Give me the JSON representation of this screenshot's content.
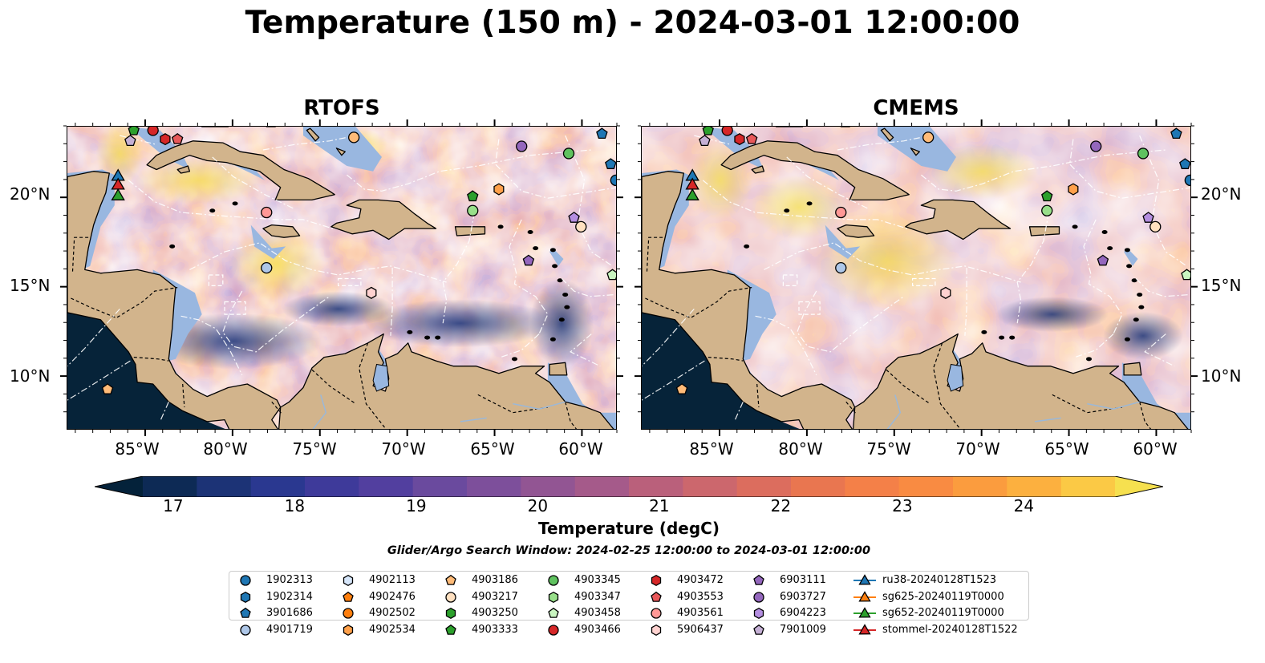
{
  "title": "Temperature (150 m) - 2024-03-01 12:00:00",
  "panels": [
    {
      "title": "RTOFS",
      "variant": "rtofs"
    },
    {
      "title": "CMEMS",
      "variant": "cmems"
    }
  ],
  "lat_labels": [
    "20°N",
    "15°N",
    "10°N"
  ],
  "lon_labels": [
    "85°W",
    "80°W",
    "75°W",
    "70°W",
    "65°W",
    "60°W"
  ],
  "colorbar": {
    "label": "Temperature (degC)",
    "ticks": [
      "17",
      "18",
      "19",
      "20",
      "21",
      "22",
      "23",
      "24"
    ],
    "min": 16.75,
    "max": 24.75,
    "extend": "both",
    "colors": [
      "#04223a",
      "#0d2a55",
      "#1c3376",
      "#2a3890",
      "#3e3a9a",
      "#523f9f",
      "#6a4a9e",
      "#7d4f9b",
      "#925593",
      "#a55a8a",
      "#ba607b",
      "#cc676d",
      "#dc6d5e",
      "#e97650",
      "#f48048",
      "#f98b42",
      "#fb9c3e",
      "#fcb03f",
      "#fbc945",
      "#f6e04f"
    ]
  },
  "search_window": "Glider/Argo Search Window: 2024-02-25 12:00:00 to 2024-03-01 12:00:00",
  "map": {
    "land_color": "#d2b48c",
    "shallow_color": "#99b7e0",
    "deep_color": "#062339",
    "lon_range": [
      -89.5,
      -58
    ],
    "lat_range": [
      7,
      24
    ]
  },
  "legend": [
    {
      "label": "1902313",
      "marker": "circle",
      "color": "#1f77b4"
    },
    {
      "label": "1902314",
      "marker": "hexagon",
      "color": "#1f77b4"
    },
    {
      "label": "3901686",
      "marker": "pentagon",
      "color": "#1f77b4"
    },
    {
      "label": "4901719",
      "marker": "circle",
      "color": "#aec7e8"
    },
    {
      "label": "4902113",
      "marker": "hexagon",
      "color": "#d6e6fa"
    },
    {
      "label": "4902476",
      "marker": "pentagon",
      "color": "#ff7f0e"
    },
    {
      "label": "4902502",
      "marker": "circle",
      "color": "#ff7f0e"
    },
    {
      "label": "4902534",
      "marker": "hexagon",
      "color": "#ffa04a"
    },
    {
      "label": "4903186",
      "marker": "pentagon",
      "color": "#ffbb78"
    },
    {
      "label": "4903217",
      "marker": "circle",
      "color": "#ffe0c0"
    },
    {
      "label": "4903250",
      "marker": "hexagon",
      "color": "#2ca02c"
    },
    {
      "label": "4903333",
      "marker": "pentagon",
      "color": "#2ca02c"
    },
    {
      "label": "4903345",
      "marker": "circle",
      "color": "#5fc25f"
    },
    {
      "label": "4903347",
      "marker": "hexagon",
      "color": "#98df8a"
    },
    {
      "label": "4903458",
      "marker": "pentagon",
      "color": "#c9f5c0"
    },
    {
      "label": "4903466",
      "marker": "circle",
      "color": "#d62728"
    },
    {
      "label": "4903472",
      "marker": "hexagon",
      "color": "#d62728"
    },
    {
      "label": "4903553",
      "marker": "pentagon",
      "color": "#e8585a"
    },
    {
      "label": "4903561",
      "marker": "circle",
      "color": "#ff9896"
    },
    {
      "label": "5906437",
      "marker": "hexagon",
      "color": "#ffd2d0"
    },
    {
      "label": "6903111",
      "marker": "pentagon",
      "color": "#9467bd"
    },
    {
      "label": "6903727",
      "marker": "circle",
      "color": "#9467bd"
    },
    {
      "label": "6904223",
      "marker": "hexagon",
      "color": "#b48ee0"
    },
    {
      "label": "7901009",
      "marker": "pentagon",
      "color": "#c5b0d5"
    },
    {
      "label": "ru38-20240128T1523",
      "marker": "triangle-line",
      "color": "#1f77b4"
    },
    {
      "label": "sg625-20240119T0000",
      "marker": "triangle-line",
      "color": "#ff7f0e"
    },
    {
      "label": "sg652-20240119T0000",
      "marker": "triangle-line",
      "color": "#2ca02c"
    },
    {
      "label": "stommel-20240128T1522",
      "marker": "triangle-line",
      "color": "#d62728"
    }
  ],
  "floats": [
    {
      "lon": -84.6,
      "lat": 23.8,
      "marker": "circle",
      "color": "#d62728"
    },
    {
      "lon": -83.9,
      "lat": 23.3,
      "marker": "hexagon",
      "color": "#d62728"
    },
    {
      "lon": -83.2,
      "lat": 23.3,
      "marker": "pentagon",
      "color": "#e8585a"
    },
    {
      "lon": -85.7,
      "lat": 23.8,
      "marker": "pentagon",
      "color": "#2ca02c"
    },
    {
      "lon": -85.9,
      "lat": 23.2,
      "marker": "pentagon",
      "color": "#c5b0d5"
    },
    {
      "lon": -73.1,
      "lat": 23.4,
      "marker": "circle",
      "color": "#ffbb78"
    },
    {
      "lon": -63.5,
      "lat": 22.9,
      "marker": "circle",
      "color": "#9467bd"
    },
    {
      "lon": -60.8,
      "lat": 22.5,
      "marker": "circle",
      "color": "#5fc25f"
    },
    {
      "lon": -58.9,
      "lat": 23.6,
      "marker": "pentagon",
      "color": "#1f77b4"
    },
    {
      "lon": -58.4,
      "lat": 21.9,
      "marker": "pentagon",
      "color": "#1f77b4"
    },
    {
      "lon": -58.1,
      "lat": 21.0,
      "marker": "circle",
      "color": "#1f77b4"
    },
    {
      "lon": -66.3,
      "lat": 20.1,
      "marker": "pentagon",
      "color": "#2ca02c"
    },
    {
      "lon": -64.8,
      "lat": 20.5,
      "marker": "hexagon",
      "color": "#ffa04a"
    },
    {
      "lon": -66.3,
      "lat": 19.3,
      "marker": "circle",
      "color": "#98df8a"
    },
    {
      "lon": -60.5,
      "lat": 18.9,
      "marker": "pentagon",
      "color": "#b48ee0"
    },
    {
      "lon": -60.1,
      "lat": 18.4,
      "marker": "circle",
      "color": "#ffe0c0"
    },
    {
      "lon": -78.1,
      "lat": 19.2,
      "marker": "circle",
      "color": "#ff9896"
    },
    {
      "lon": -78.1,
      "lat": 16.1,
      "marker": "circle",
      "color": "#aec7e8"
    },
    {
      "lon": -72.1,
      "lat": 14.7,
      "marker": "hexagon",
      "color": "#ffd2d0"
    },
    {
      "lon": -63.1,
      "lat": 16.5,
      "marker": "pentagon",
      "color": "#9467bd"
    },
    {
      "lon": -58.3,
      "lat": 15.7,
      "marker": "pentagon",
      "color": "#c9f5c0"
    },
    {
      "lon": -87.2,
      "lat": 9.3,
      "marker": "pentagon",
      "color": "#ffbb78"
    }
  ],
  "gliders": [
    {
      "lon": -86.6,
      "lat": 21.2,
      "color": "#1f77b4"
    },
    {
      "lon": -86.6,
      "lat": 20.7,
      "color": "#d62728"
    },
    {
      "lon": -86.6,
      "lat": 20.1,
      "color": "#2ca02c"
    }
  ]
}
